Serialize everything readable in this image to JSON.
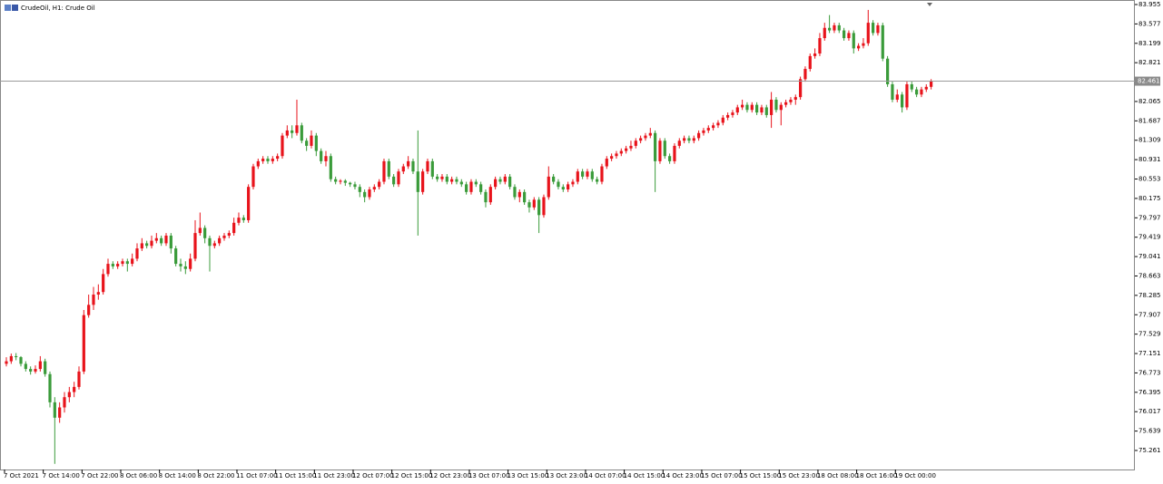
{
  "chart_data": {
    "type": "candlestick",
    "title": "CrudeOil, H1:  Crude Oil",
    "up_color": "#e8131b",
    "down_color": "#3a9b3a",
    "current_price": 82.461,
    "current_price_label": "82.461",
    "ylim": [
      74.89,
      84.008
    ],
    "yticks": [
      83.955,
      83.577,
      83.199,
      82.821,
      82.065,
      81.687,
      81.309,
      80.931,
      80.553,
      80.175,
      79.797,
      79.419,
      79.041,
      78.663,
      78.285,
      77.907,
      77.529,
      77.151,
      76.773,
      76.395,
      76.017,
      75.639,
      75.261
    ],
    "categories": [
      "7 Oct 2021",
      null,
      null,
      null,
      null,
      null,
      null,
      null,
      "7 Oct 14:00",
      null,
      null,
      null,
      null,
      null,
      null,
      null,
      "7 Oct 22:00",
      null,
      null,
      null,
      null,
      null,
      null,
      null,
      "8 Oct 06:00",
      null,
      null,
      null,
      null,
      null,
      null,
      null,
      "8 Oct 14:00",
      null,
      null,
      null,
      null,
      null,
      null,
      null,
      "8 Oct 22:00",
      null,
      null,
      null,
      null,
      null,
      null,
      null,
      "11 Oct 07:00",
      null,
      null,
      null,
      null,
      null,
      null,
      null,
      "11 Oct 15:00",
      null,
      null,
      null,
      null,
      null,
      null,
      null,
      "11 Oct 23:00",
      null,
      null,
      null,
      null,
      null,
      null,
      null,
      "12 Oct 07:00",
      null,
      null,
      null,
      null,
      null,
      null,
      null,
      "12 Oct 15:00",
      null,
      null,
      null,
      null,
      null,
      null,
      null,
      "12 Oct 23:00",
      null,
      null,
      null,
      null,
      null,
      null,
      null,
      "13 Oct 07:00",
      null,
      null,
      null,
      null,
      null,
      null,
      null,
      "13 Oct 15:00",
      null,
      null,
      null,
      null,
      null,
      null,
      null,
      "13 Oct 23:00",
      null,
      null,
      null,
      null,
      null,
      null,
      null,
      "14 Oct 07:00",
      null,
      null,
      null,
      null,
      null,
      null,
      null,
      "14 Oct 15:00",
      null,
      null,
      null,
      null,
      null,
      null,
      null,
      "14 Oct 23:00",
      null,
      null,
      null,
      null,
      null,
      null,
      null,
      "15 Oct 07:00",
      null,
      null,
      null,
      null,
      null,
      null,
      null,
      "15 Oct 15:00",
      null,
      null,
      null,
      null,
      null,
      null,
      null,
      "15 Oct 23:00",
      null,
      null,
      null,
      null,
      null,
      null,
      null,
      "18 Oct 08:00",
      null,
      null,
      null,
      null,
      null,
      null,
      null,
      "18 Oct 16:00",
      null,
      null,
      null,
      null,
      null,
      null,
      null,
      "19 Oct 00:00",
      null,
      null,
      null,
      null,
      null,
      null,
      null
    ],
    "candles": [
      [
        76.95,
        77.08,
        76.9,
        77.0
      ],
      [
        77.0,
        77.15,
        76.95,
        77.1
      ],
      [
        77.1,
        77.16,
        77.02,
        77.08
      ],
      [
        77.08,
        77.1,
        76.9,
        76.95
      ],
      [
        76.95,
        77.0,
        76.8,
        76.85
      ],
      [
        76.85,
        76.9,
        76.74,
        76.8
      ],
      [
        76.8,
        76.92,
        76.76,
        76.85
      ],
      [
        76.85,
        77.1,
        76.8,
        77.0
      ],
      [
        77.0,
        77.05,
        76.7,
        76.75
      ],
      [
        76.75,
        76.8,
        76.1,
        76.2
      ],
      [
        76.2,
        76.3,
        75.0,
        75.9
      ],
      [
        75.9,
        76.2,
        75.8,
        76.1
      ],
      [
        76.1,
        76.4,
        76.0,
        76.3
      ],
      [
        76.3,
        76.5,
        76.2,
        76.4
      ],
      [
        76.4,
        76.6,
        76.3,
        76.5
      ],
      [
        76.5,
        76.9,
        76.45,
        76.8
      ],
      [
        76.8,
        78.0,
        76.75,
        77.9
      ],
      [
        77.9,
        78.3,
        77.85,
        78.1
      ],
      [
        78.1,
        78.45,
        78.0,
        78.3
      ],
      [
        78.3,
        78.5,
        78.2,
        78.35
      ],
      [
        78.35,
        78.8,
        78.3,
        78.7
      ],
      [
        78.7,
        79.0,
        78.65,
        78.9
      ],
      [
        78.9,
        78.95,
        78.8,
        78.85
      ],
      [
        78.85,
        78.95,
        78.8,
        78.9
      ],
      [
        78.9,
        79.0,
        78.85,
        78.95
      ],
      [
        78.95,
        79.0,
        78.75,
        78.9
      ],
      [
        78.9,
        79.1,
        78.85,
        79.0
      ],
      [
        79.0,
        79.3,
        78.95,
        79.2
      ],
      [
        79.2,
        79.4,
        79.15,
        79.3
      ],
      [
        79.3,
        79.35,
        79.2,
        79.25
      ],
      [
        79.25,
        79.45,
        79.2,
        79.35
      ],
      [
        79.35,
        79.5,
        79.3,
        79.4
      ],
      [
        79.4,
        79.45,
        79.25,
        79.3
      ],
      [
        79.3,
        79.5,
        79.25,
        79.45
      ],
      [
        79.45,
        79.5,
        79.1,
        79.2
      ],
      [
        79.2,
        79.25,
        78.85,
        78.9
      ],
      [
        78.9,
        79.0,
        78.75,
        78.85
      ],
      [
        78.85,
        78.95,
        78.7,
        78.8
      ],
      [
        78.8,
        79.1,
        78.75,
        79.0
      ],
      [
        79.0,
        79.75,
        78.95,
        79.5
      ],
      [
        79.5,
        79.9,
        79.45,
        79.6
      ],
      [
        79.6,
        79.65,
        79.3,
        79.4
      ],
      [
        79.4,
        79.45,
        78.75,
        79.25
      ],
      [
        79.25,
        79.35,
        79.2,
        79.3
      ],
      [
        79.3,
        79.45,
        79.25,
        79.4
      ],
      [
        79.4,
        79.5,
        79.35,
        79.45
      ],
      [
        79.45,
        79.55,
        79.4,
        79.5
      ],
      [
        79.5,
        79.8,
        79.45,
        79.7
      ],
      [
        79.7,
        79.9,
        79.65,
        79.8
      ],
      [
        79.8,
        79.85,
        79.7,
        79.75
      ],
      [
        79.75,
        80.45,
        79.7,
        80.4
      ],
      [
        80.4,
        80.85,
        80.35,
        80.8
      ],
      [
        80.8,
        80.95,
        80.75,
        80.9
      ],
      [
        80.9,
        81.0,
        80.85,
        80.95
      ],
      [
        80.95,
        81.0,
        80.85,
        80.9
      ],
      [
        80.9,
        81.0,
        80.85,
        80.95
      ],
      [
        80.95,
        81.05,
        80.9,
        81.0
      ],
      [
        81.0,
        81.45,
        80.95,
        81.4
      ],
      [
        81.4,
        81.6,
        81.35,
        81.5
      ],
      [
        81.5,
        81.6,
        81.35,
        81.45
      ],
      [
        81.45,
        82.1,
        81.4,
        81.6
      ],
      [
        81.6,
        81.65,
        81.25,
        81.3
      ],
      [
        81.3,
        81.35,
        81.1,
        81.2
      ],
      [
        81.2,
        81.5,
        81.15,
        81.4
      ],
      [
        81.4,
        81.45,
        81.0,
        81.1
      ],
      [
        81.1,
        81.15,
        80.85,
        80.9
      ],
      [
        80.9,
        81.1,
        80.8,
        81.0
      ],
      [
        81.0,
        81.05,
        80.5,
        80.55
      ],
      [
        80.55,
        80.6,
        80.45,
        80.5
      ],
      [
        80.5,
        80.55,
        80.45,
        80.52
      ],
      [
        80.52,
        80.55,
        80.42,
        80.48
      ],
      [
        80.48,
        80.5,
        80.4,
        80.45
      ],
      [
        80.45,
        80.5,
        80.35,
        80.4
      ],
      [
        80.4,
        80.45,
        80.2,
        80.3
      ],
      [
        80.3,
        80.35,
        80.1,
        80.2
      ],
      [
        80.2,
        80.4,
        80.15,
        80.35
      ],
      [
        80.35,
        80.45,
        80.3,
        80.4
      ],
      [
        80.4,
        80.55,
        80.35,
        80.5
      ],
      [
        80.5,
        80.95,
        80.45,
        80.9
      ],
      [
        80.9,
        80.95,
        80.55,
        80.6
      ],
      [
        80.6,
        80.65,
        80.4,
        80.45
      ],
      [
        80.45,
        80.75,
        80.4,
        80.7
      ],
      [
        80.7,
        80.85,
        80.65,
        80.8
      ],
      [
        80.8,
        81.0,
        80.75,
        80.9
      ],
      [
        80.9,
        80.95,
        80.65,
        80.7
      ],
      [
        80.7,
        81.5,
        79.45,
        80.3
      ],
      [
        80.3,
        80.75,
        80.25,
        80.7
      ],
      [
        80.7,
        80.95,
        80.65,
        80.9
      ],
      [
        80.9,
        80.95,
        80.55,
        80.6
      ],
      [
        80.6,
        80.65,
        80.5,
        80.55
      ],
      [
        80.55,
        80.65,
        80.5,
        80.6
      ],
      [
        80.6,
        80.65,
        80.45,
        80.5
      ],
      [
        80.5,
        80.6,
        80.45,
        80.55
      ],
      [
        80.55,
        80.6,
        80.45,
        80.5
      ],
      [
        80.5,
        80.55,
        80.4,
        80.45
      ],
      [
        80.45,
        80.5,
        80.25,
        80.3
      ],
      [
        80.3,
        80.55,
        80.25,
        80.5
      ],
      [
        80.5,
        80.55,
        80.4,
        80.45
      ],
      [
        80.45,
        80.5,
        80.25,
        80.3
      ],
      [
        80.3,
        80.35,
        80.0,
        80.1
      ],
      [
        80.1,
        80.45,
        80.05,
        80.4
      ],
      [
        80.4,
        80.6,
        80.35,
        80.55
      ],
      [
        80.55,
        80.6,
        80.45,
        80.5
      ],
      [
        80.5,
        80.65,
        80.45,
        80.6
      ],
      [
        80.6,
        80.65,
        80.35,
        80.4
      ],
      [
        80.4,
        80.45,
        80.15,
        80.2
      ],
      [
        80.2,
        80.35,
        80.1,
        80.3
      ],
      [
        80.3,
        80.35,
        80.05,
        80.1
      ],
      [
        80.1,
        80.15,
        79.9,
        80.0
      ],
      [
        80.0,
        80.2,
        79.95,
        80.15
      ],
      [
        80.15,
        80.2,
        79.5,
        79.85
      ],
      [
        79.85,
        80.25,
        79.8,
        80.2
      ],
      [
        80.2,
        80.8,
        80.15,
        80.6
      ],
      [
        80.6,
        80.65,
        80.45,
        80.5
      ],
      [
        80.5,
        80.55,
        80.35,
        80.4
      ],
      [
        80.4,
        80.45,
        80.3,
        80.35
      ],
      [
        80.35,
        80.5,
        80.3,
        80.45
      ],
      [
        80.45,
        80.55,
        80.4,
        80.5
      ],
      [
        80.5,
        80.75,
        80.45,
        80.7
      ],
      [
        80.7,
        80.75,
        80.55,
        80.6
      ],
      [
        80.6,
        80.75,
        80.55,
        80.7
      ],
      [
        80.7,
        80.75,
        80.5,
        80.55
      ],
      [
        80.55,
        80.6,
        80.45,
        80.5
      ],
      [
        80.5,
        80.85,
        80.45,
        80.8
      ],
      [
        80.8,
        81.0,
        80.75,
        80.95
      ],
      [
        80.95,
        81.05,
        80.9,
        81.0
      ],
      [
        81.0,
        81.1,
        80.95,
        81.05
      ],
      [
        81.05,
        81.15,
        81.0,
        81.1
      ],
      [
        81.1,
        81.2,
        81.05,
        81.15
      ],
      [
        81.15,
        81.3,
        81.1,
        81.2
      ],
      [
        81.2,
        81.35,
        81.15,
        81.3
      ],
      [
        81.3,
        81.4,
        81.25,
        81.35
      ],
      [
        81.35,
        81.45,
        81.3,
        81.4
      ],
      [
        81.4,
        81.55,
        81.35,
        81.45
      ],
      [
        81.45,
        81.5,
        80.3,
        80.9
      ],
      [
        80.9,
        81.35,
        80.85,
        81.3
      ],
      [
        81.3,
        81.35,
        80.95,
        81.0
      ],
      [
        81.0,
        81.05,
        80.85,
        80.9
      ],
      [
        80.9,
        81.25,
        80.85,
        81.2
      ],
      [
        81.2,
        81.35,
        81.15,
        81.3
      ],
      [
        81.3,
        81.4,
        81.25,
        81.35
      ],
      [
        81.35,
        81.4,
        81.25,
        81.3
      ],
      [
        81.3,
        81.4,
        81.25,
        81.35
      ],
      [
        81.35,
        81.5,
        81.3,
        81.45
      ],
      [
        81.45,
        81.55,
        81.4,
        81.5
      ],
      [
        81.5,
        81.6,
        81.45,
        81.55
      ],
      [
        81.55,
        81.65,
        81.5,
        81.6
      ],
      [
        81.6,
        81.7,
        81.55,
        81.65
      ],
      [
        81.65,
        81.8,
        81.6,
        81.75
      ],
      [
        81.75,
        81.85,
        81.7,
        81.8
      ],
      [
        81.8,
        81.9,
        81.75,
        81.85
      ],
      [
        81.85,
        82.0,
        81.8,
        81.95
      ],
      [
        81.95,
        82.1,
        81.9,
        82.0
      ],
      [
        82.0,
        82.05,
        81.85,
        81.9
      ],
      [
        81.9,
        82.05,
        81.85,
        82.0
      ],
      [
        82.0,
        82.05,
        81.8,
        81.85
      ],
      [
        81.85,
        82.0,
        81.8,
        81.95
      ],
      [
        81.95,
        82.0,
        81.75,
        81.8
      ],
      [
        81.8,
        82.25,
        81.55,
        82.1
      ],
      [
        82.1,
        82.15,
        81.85,
        81.9
      ],
      [
        81.9,
        82.05,
        81.6,
        82.0
      ],
      [
        82.0,
        82.1,
        81.95,
        82.05
      ],
      [
        82.05,
        82.15,
        82.0,
        82.1
      ],
      [
        82.1,
        82.2,
        82.0,
        82.15
      ],
      [
        82.15,
        82.55,
        82.1,
        82.5
      ],
      [
        82.5,
        82.75,
        82.45,
        82.7
      ],
      [
        82.7,
        83.0,
        82.65,
        82.95
      ],
      [
        82.95,
        83.1,
        82.9,
        83.0
      ],
      [
        83.0,
        83.4,
        82.95,
        83.3
      ],
      [
        83.3,
        83.6,
        83.25,
        83.5
      ],
      [
        83.5,
        83.75,
        83.4,
        83.45
      ],
      [
        83.45,
        83.6,
        83.4,
        83.55
      ],
      [
        83.55,
        83.6,
        83.4,
        83.45
      ],
      [
        83.45,
        83.5,
        83.25,
        83.3
      ],
      [
        83.3,
        83.45,
        83.25,
        83.4
      ],
      [
        83.4,
        83.45,
        83.0,
        83.1
      ],
      [
        83.1,
        83.2,
        83.05,
        83.15
      ],
      [
        83.15,
        83.3,
        83.1,
        83.2
      ],
      [
        83.2,
        83.85,
        83.15,
        83.6
      ],
      [
        83.6,
        83.65,
        83.35,
        83.4
      ],
      [
        83.4,
        83.6,
        83.35,
        83.55
      ],
      [
        83.55,
        83.6,
        82.85,
        82.9
      ],
      [
        82.9,
        82.95,
        82.35,
        82.4
      ],
      [
        82.4,
        82.45,
        82.05,
        82.1
      ],
      [
        82.1,
        82.3,
        82.05,
        82.2
      ],
      [
        82.2,
        82.25,
        81.85,
        81.95
      ],
      [
        81.95,
        82.45,
        81.9,
        82.4
      ],
      [
        82.4,
        82.45,
        82.25,
        82.3
      ],
      [
        82.3,
        82.35,
        82.15,
        82.2
      ],
      [
        82.2,
        82.35,
        82.15,
        82.3
      ],
      [
        82.3,
        82.4,
        82.25,
        82.35
      ],
      [
        82.35,
        82.5,
        82.3,
        82.461
      ]
    ]
  }
}
